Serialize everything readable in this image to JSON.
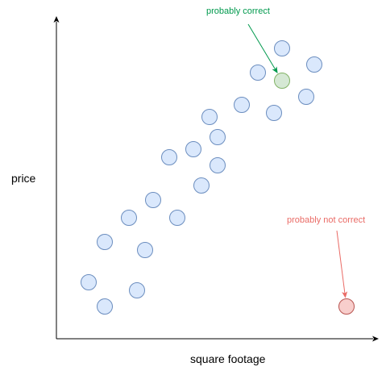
{
  "chart_data": {
    "type": "scatter",
    "title": "",
    "xlabel": "square footage",
    "ylabel": "price",
    "grid": false,
    "xlim": [
      0,
      400
    ],
    "ylim": [
      0,
      400
    ],
    "series": [
      {
        "fill": "#dae8fc",
        "stroke": "#6c8ebf",
        "points": [
          {
            "x": 40,
            "y": 70
          },
          {
            "x": 60,
            "y": 40
          },
          {
            "x": 60,
            "y": 120
          },
          {
            "x": 90,
            "y": 150
          },
          {
            "x": 100,
            "y": 60
          },
          {
            "x": 110,
            "y": 110
          },
          {
            "x": 120,
            "y": 172
          },
          {
            "x": 140,
            "y": 225
          },
          {
            "x": 150,
            "y": 150
          },
          {
            "x": 170,
            "y": 235
          },
          {
            "x": 180,
            "y": 190
          },
          {
            "x": 190,
            "y": 275
          },
          {
            "x": 200,
            "y": 215
          },
          {
            "x": 200,
            "y": 250
          },
          {
            "x": 230,
            "y": 290
          },
          {
            "x": 250,
            "y": 330
          },
          {
            "x": 270,
            "y": 280
          },
          {
            "x": 280,
            "y": 360
          },
          {
            "x": 310,
            "y": 300
          },
          {
            "x": 320,
            "y": 340
          }
        ]
      },
      {
        "fill": "#d5e8d4",
        "stroke": "#82b366",
        "points": [
          {
            "x": 280,
            "y": 320
          }
        ]
      },
      {
        "fill": "#f8cecc",
        "stroke": "#b85450",
        "points": [
          {
            "x": 360,
            "y": 40
          }
        ]
      }
    ],
    "annotations": [
      {
        "text": "probably correct",
        "color": "#00994d",
        "target": {
          "x": 280,
          "y": 320
        }
      },
      {
        "text": "probably not correct",
        "color": "#ea6b66",
        "target": {
          "x": 360,
          "y": 40
        }
      }
    ]
  }
}
